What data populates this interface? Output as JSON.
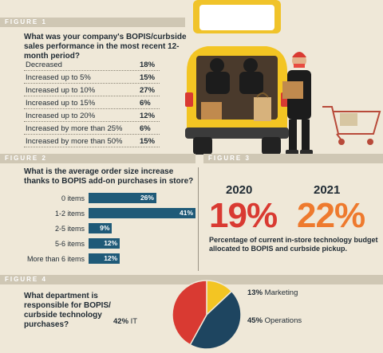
{
  "figure1": {
    "tag": "FIGURE 1",
    "question": "What was your company's BOPIS/curbside sales performance in the most recent 12-month period?",
    "rows": [
      {
        "label": "Decreased",
        "value": "18%"
      },
      {
        "label": "Increased up to 5%",
        "value": "15%"
      },
      {
        "label": "Increased up to 10%",
        "value": "27%"
      },
      {
        "label": "Increased up to 15%",
        "value": "6%"
      },
      {
        "label": "Increased up to 20%",
        "value": "12%"
      },
      {
        "label": "Increased by more than 25%",
        "value": "6%"
      },
      {
        "label": "Increased by more than 50%",
        "value": "15%"
      }
    ]
  },
  "figure2": {
    "tag": "FIGURE 2",
    "question": "What is the average order size increase thanks to BOPIS add-on purchases in store?"
  },
  "figure3": {
    "tag": "FIGURE 3",
    "year_a": "2020",
    "value_a": "19%",
    "year_b": "2021",
    "value_b": "22%",
    "caption": "Percentage of current in-store technology budget allocated to BOPIS and curbside pickup."
  },
  "figure4": {
    "tag": "FIGURE 4",
    "question": "What department is responsible for BOPIS/ curbside technology purchases?"
  },
  "colors": {
    "accent_blue": "#1f5a78",
    "red": "#d93a32",
    "orange": "#ee7a2e",
    "yellow": "#f3c523",
    "navy": "#1e4560"
  },
  "chart_data": [
    {
      "type": "bar",
      "orientation": "horizontal",
      "title": "What is the average order size increase thanks to BOPIS add-on purchases in store?",
      "categories": [
        "0 items",
        "1-2 items",
        "2-5 items",
        "5-6 items",
        "More than 6 items"
      ],
      "values": [
        26,
        41,
        9,
        12,
        12
      ],
      "value_labels": [
        "26%",
        "41%",
        "9%",
        "12%",
        "12%"
      ],
      "xlim": [
        0,
        41
      ]
    },
    {
      "type": "pie",
      "title": "What department is responsible for BOPIS/ curbside technology purchases?",
      "slices": [
        {
          "label": "Marketing",
          "value": 13,
          "value_label": "13%",
          "color": "#f3c523"
        },
        {
          "label": "Operations",
          "value": 45,
          "value_label": "45%",
          "color": "#1e4560"
        },
        {
          "label": "IT",
          "value": 42,
          "value_label": "42%",
          "color": "#d93a32"
        }
      ]
    }
  ]
}
